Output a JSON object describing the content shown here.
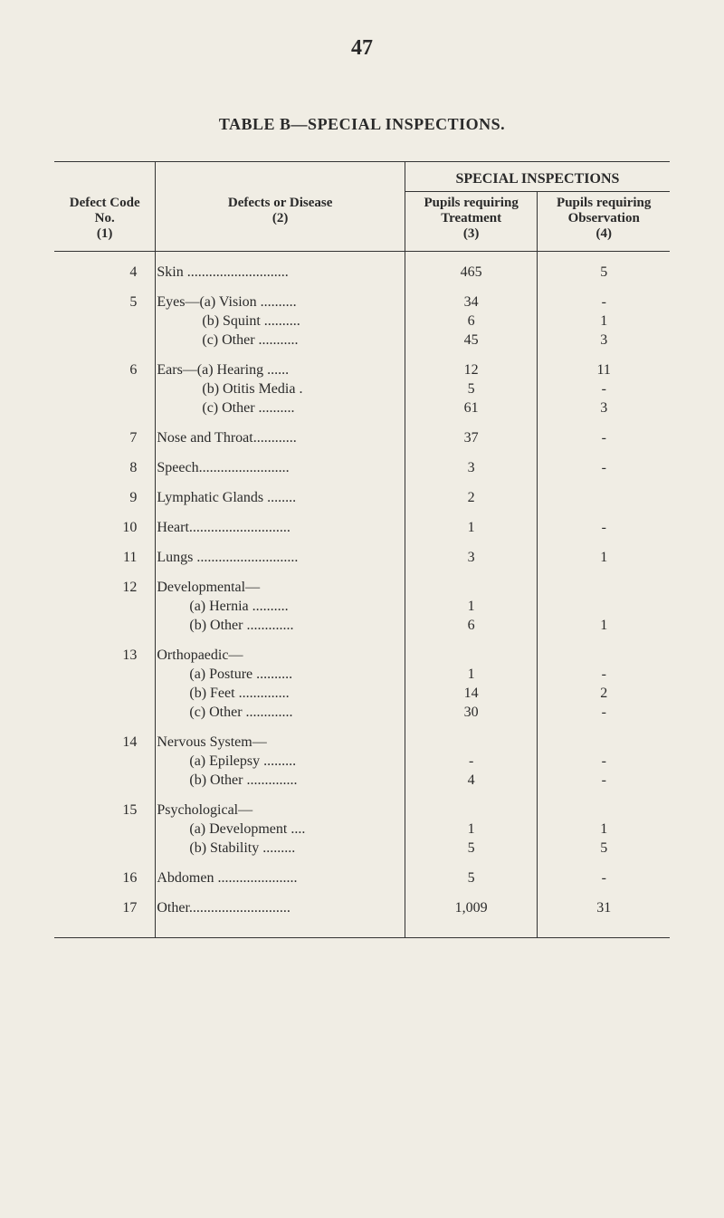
{
  "page_number": "47",
  "table_title": "TABLE B—SPECIAL INSPECTIONS.",
  "super_header": "SPECIAL INSPECTIONS",
  "columns": {
    "code_label": "Defect Code No.",
    "code_sub": "(1)",
    "disease_label": "Defects or Disease",
    "disease_sub": "(2)",
    "treatment_label": "Pupils requiring Treatment",
    "treatment_sub": "(3)",
    "observation_label": "Pupils requiring Observation",
    "observation_sub": "(4)"
  },
  "rows": [
    {
      "code": "4",
      "disease": "Skin ............................",
      "treatment": "465",
      "observation": "5",
      "kind": "main"
    },
    {
      "code": "5",
      "disease": "Eyes—(a) Vision ..........",
      "treatment": "34",
      "observation": "-",
      "kind": "main"
    },
    {
      "code": "",
      "disease": "(b) Squint ..........",
      "treatment": "6",
      "observation": "1",
      "kind": "sub"
    },
    {
      "code": "",
      "disease": "(c) Other ...........",
      "treatment": "45",
      "observation": "3",
      "kind": "sub"
    },
    {
      "code": "6",
      "disease": "Ears—(a) Hearing ......",
      "treatment": "12",
      "observation": "11",
      "kind": "main"
    },
    {
      "code": "",
      "disease": "(b) Otitis Media .",
      "treatment": "5",
      "observation": "-",
      "kind": "sub"
    },
    {
      "code": "",
      "disease": "(c) Other ..........",
      "treatment": "61",
      "observation": "3",
      "kind": "sub"
    },
    {
      "code": "7",
      "disease": "Nose and Throat............",
      "treatment": "37",
      "observation": "-",
      "kind": "main"
    },
    {
      "code": "8",
      "disease": "Speech.........................",
      "treatment": "3",
      "observation": "-",
      "kind": "main"
    },
    {
      "code": "9",
      "disease": "Lymphatic Glands ........",
      "treatment": "2",
      "observation": "",
      "kind": "main"
    },
    {
      "code": "10",
      "disease": "Heart............................",
      "treatment": "1",
      "observation": "-",
      "kind": "main"
    },
    {
      "code": "11",
      "disease": "Lungs ............................",
      "treatment": "3",
      "observation": "1",
      "kind": "main"
    },
    {
      "code": "12",
      "disease": "Developmental—",
      "treatment": "",
      "observation": "",
      "kind": "main"
    },
    {
      "code": "",
      "disease": "(a) Hernia ..........",
      "treatment": "1",
      "observation": "",
      "kind": "sub2"
    },
    {
      "code": "",
      "disease": "(b) Other .............",
      "treatment": "6",
      "observation": "1",
      "kind": "sub2"
    },
    {
      "code": "13",
      "disease": "Orthopaedic—",
      "treatment": "",
      "observation": "",
      "kind": "main"
    },
    {
      "code": "",
      "disease": "(a) Posture ..........",
      "treatment": "1",
      "observation": "-",
      "kind": "sub2"
    },
    {
      "code": "",
      "disease": "(b) Feet ..............",
      "treatment": "14",
      "observation": "2",
      "kind": "sub2"
    },
    {
      "code": "",
      "disease": "(c) Other .............",
      "treatment": "30",
      "observation": "-",
      "kind": "sub2"
    },
    {
      "code": "14",
      "disease": "Nervous System—",
      "treatment": "",
      "observation": "",
      "kind": "main"
    },
    {
      "code": "",
      "disease": "(a) Epilepsy .........",
      "treatment": "-",
      "observation": "-",
      "kind": "sub2"
    },
    {
      "code": "",
      "disease": "(b) Other ..............",
      "treatment": "4",
      "observation": "-",
      "kind": "sub2"
    },
    {
      "code": "15",
      "disease": "Psychological—",
      "treatment": "",
      "observation": "",
      "kind": "main"
    },
    {
      "code": "",
      "disease": "(a) Development ....",
      "treatment": "1",
      "observation": "1",
      "kind": "sub2"
    },
    {
      "code": "",
      "disease": "(b) Stability .........",
      "treatment": "5",
      "observation": "5",
      "kind": "sub2"
    },
    {
      "code": "16",
      "disease": "Abdomen ......................",
      "treatment": "5",
      "observation": "-",
      "kind": "main"
    },
    {
      "code": "17",
      "disease": "Other............................",
      "treatment": "1,009",
      "observation": "31",
      "kind": "main"
    }
  ]
}
